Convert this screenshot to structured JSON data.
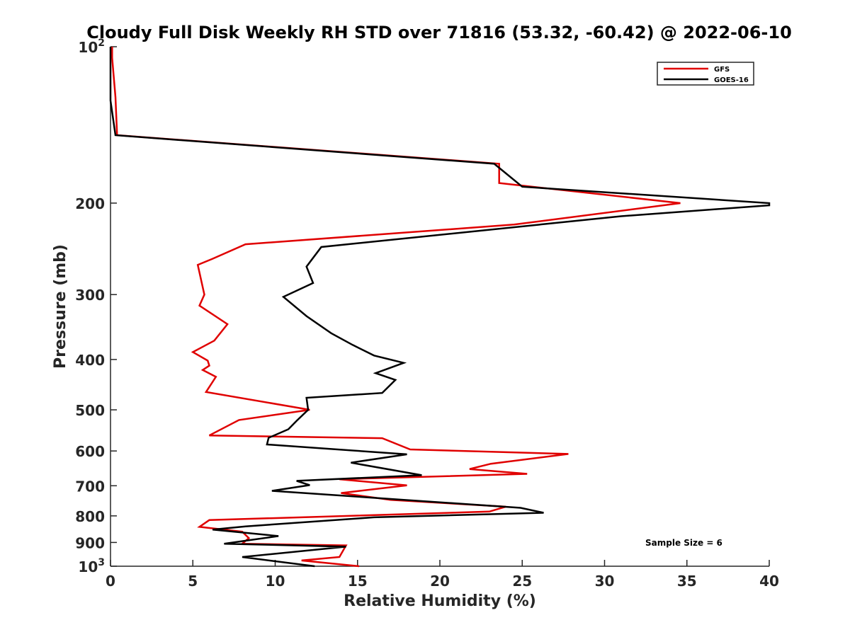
{
  "chart_data": {
    "type": "line",
    "title": "Cloudy Full Disk Weekly RH STD over 71816 (53.32, -60.42) @ 2022-06-10",
    "xlabel": "Relative Humidity (%)",
    "ylabel": "Pressure (mb)",
    "xlim": [
      0,
      40
    ],
    "ylim": [
      100,
      1000
    ],
    "y_scale": "log",
    "y_reversed": true,
    "x_ticks": [
      "0",
      "5",
      "10",
      "15",
      "20",
      "25",
      "30",
      "35",
      "40"
    ],
    "y_ticks": [
      {
        "value": 100,
        "base": "10",
        "exp": "2"
      },
      {
        "value": 200,
        "label": "200"
      },
      {
        "value": 300,
        "label": "300"
      },
      {
        "value": 400,
        "label": "400"
      },
      {
        "value": 500,
        "label": "500"
      },
      {
        "value": 600,
        "label": "600"
      },
      {
        "value": 700,
        "label": "700"
      },
      {
        "value": 800,
        "label": "800"
      },
      {
        "value": 900,
        "label": "900"
      },
      {
        "value": 1000,
        "base": "10",
        "exp": "3"
      }
    ],
    "legend_position": "top-right",
    "annotation": "Sample Size = 6",
    "series": [
      {
        "name": "GFS",
        "color": "#e00000",
        "points": [
          [
            0.1,
            100
          ],
          [
            0.1,
            105
          ],
          [
            0.3,
            125
          ],
          [
            0.4,
            148
          ],
          [
            23.6,
            168
          ],
          [
            23.6,
            183
          ],
          [
            34.6,
            200
          ],
          [
            24.5,
            220
          ],
          [
            8.2,
            240
          ],
          [
            6.2,
            256
          ],
          [
            5.3,
            263
          ],
          [
            5.7,
            300
          ],
          [
            5.4,
            315
          ],
          [
            7.1,
            342
          ],
          [
            6.3,
            368
          ],
          [
            5.0,
            387
          ],
          [
            5.9,
            402
          ],
          [
            6.0,
            411
          ],
          [
            5.6,
            419
          ],
          [
            6.4,
            432
          ],
          [
            5.8,
            462
          ],
          [
            12.1,
            500
          ],
          [
            7.8,
            523
          ],
          [
            6.0,
            560
          ],
          [
            16.5,
            567
          ],
          [
            18.2,
            596
          ],
          [
            27.8,
            608
          ],
          [
            23.1,
            635
          ],
          [
            21.8,
            650
          ],
          [
            25.3,
            664
          ],
          [
            13.9,
            680
          ],
          [
            18.0,
            699
          ],
          [
            14.0,
            723
          ],
          [
            17.0,
            745
          ],
          [
            24.0,
            768
          ],
          [
            23.0,
            785
          ],
          [
            6.0,
            815
          ],
          [
            5.4,
            840
          ],
          [
            8.0,
            858
          ],
          [
            8.4,
            883
          ],
          [
            8.0,
            905
          ],
          [
            14.3,
            912
          ],
          [
            13.9,
            960
          ],
          [
            11.6,
            975
          ],
          [
            15.1,
            1000
          ]
        ]
      },
      {
        "name": "GOES-16",
        "color": "#000000",
        "points": [
          [
            0.0,
            100
          ],
          [
            0.0,
            127
          ],
          [
            0.3,
            148
          ],
          [
            23.3,
            168
          ],
          [
            25.0,
            186
          ],
          [
            40.0,
            200
          ],
          [
            40.0,
            202
          ],
          [
            31.0,
            212
          ],
          [
            12.8,
            243
          ],
          [
            11.9,
            265
          ],
          [
            12.3,
            285
          ],
          [
            10.5,
            303
          ],
          [
            11.9,
            330
          ],
          [
            13.4,
            356
          ],
          [
            14.7,
            375
          ],
          [
            16.0,
            393
          ],
          [
            17.8,
            406
          ],
          [
            16.1,
            425
          ],
          [
            17.3,
            438
          ],
          [
            16.5,
            464
          ],
          [
            11.9,
            474
          ],
          [
            12.0,
            500
          ],
          [
            11.3,
            525
          ],
          [
            10.8,
            545
          ],
          [
            9.6,
            566
          ],
          [
            9.5,
            583
          ],
          [
            18.0,
            609
          ],
          [
            14.6,
            632
          ],
          [
            18.9,
            668
          ],
          [
            11.3,
            685
          ],
          [
            12.1,
            698
          ],
          [
            9.8,
            716
          ],
          [
            24.9,
            772
          ],
          [
            26.3,
            789
          ],
          [
            16.0,
            805
          ],
          [
            8.2,
            838
          ],
          [
            6.2,
            850
          ],
          [
            10.2,
            875
          ],
          [
            6.9,
            905
          ],
          [
            14.3,
            917
          ],
          [
            8.0,
            960
          ],
          [
            12.4,
            1000
          ]
        ]
      }
    ]
  }
}
